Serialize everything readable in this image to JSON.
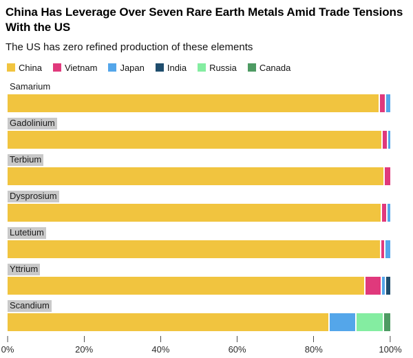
{
  "header": {
    "title": "China Has Leverage Over Seven Rare Earth Metals Amid Trade Tensions With the US",
    "subtitle": "The US has zero refined production of these elements"
  },
  "legend": [
    {
      "label": "China",
      "color": "#F1C43F"
    },
    {
      "label": "Vietnam",
      "color": "#E0397C"
    },
    {
      "label": "Japan",
      "color": "#54A6EA"
    },
    {
      "label": "India",
      "color": "#1F4D6D"
    },
    {
      "label": "Russia",
      "color": "#84EDA1"
    },
    {
      "label": "Canada",
      "color": "#4E9B63"
    }
  ],
  "chart_data": {
    "type": "bar",
    "orientation": "horizontal",
    "stacked": true,
    "unit": "percent of refined production",
    "categories": [
      "Samarium",
      "Gadolinium",
      "Terbium",
      "Dysprosium",
      "Lutetium",
      "Yttrium",
      "Scandium"
    ],
    "category_label_highlighted": [
      false,
      true,
      true,
      true,
      true,
      true,
      true
    ],
    "series": [
      {
        "name": "China",
        "values": [
          97.3,
          98.1,
          98.6,
          97.8,
          97.7,
          93.5,
          84.2
        ]
      },
      {
        "name": "Vietnam",
        "values": [
          1.7,
          1.4,
          1.4,
          1.4,
          1.1,
          4.3,
          0
        ]
      },
      {
        "name": "Japan",
        "values": [
          1.0,
          0.5,
          0,
          0.8,
          1.2,
          1.1,
          6.9
        ]
      },
      {
        "name": "India",
        "values": [
          0,
          0,
          0,
          0,
          0,
          1.1,
          0
        ]
      },
      {
        "name": "Russia",
        "values": [
          0,
          0,
          0,
          0,
          0,
          0,
          7.2
        ]
      },
      {
        "name": "Canada",
        "values": [
          0,
          0,
          0,
          0,
          0,
          0,
          1.7
        ]
      }
    ],
    "xlim": [
      0,
      100
    ],
    "x_ticks": [
      {
        "value": 0,
        "label": "0%"
      },
      {
        "value": 20,
        "label": "20%"
      },
      {
        "value": 40,
        "label": "40%"
      },
      {
        "value": 60,
        "label": "60%"
      },
      {
        "value": 80,
        "label": "80%"
      },
      {
        "value": 100,
        "label": "100%"
      }
    ],
    "grid": false,
    "legend_position": "top"
  }
}
